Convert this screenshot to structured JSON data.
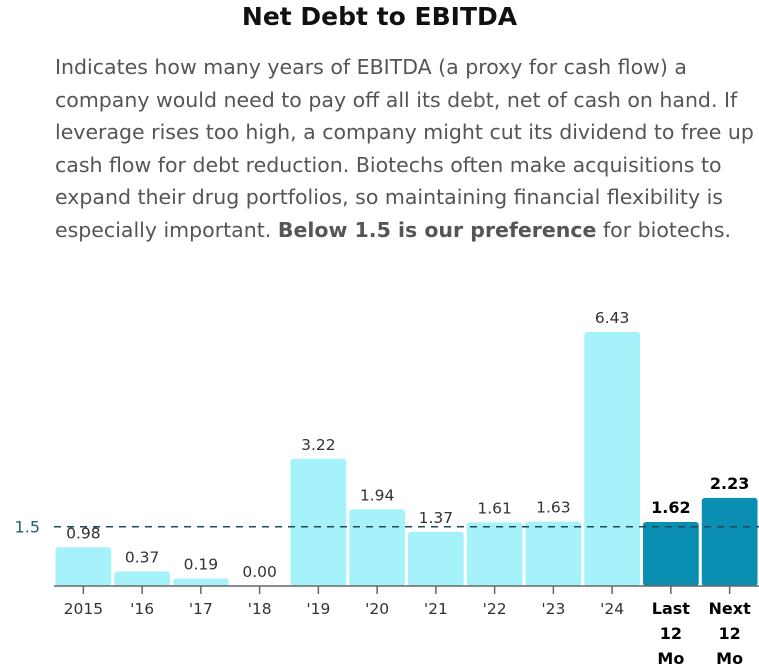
{
  "chart_data": {
    "type": "bar",
    "title": "Net Debt to EBITDA",
    "description": {
      "text": "Indicates how many years of EBITDA (a proxy for cash flow) a company would need to pay off all its debt, net of cash on hand. If leverage rises too high, a company might cut its dividend to free up cash flow for debt reduction. Biotechs often make acquisitions to expand their drug portfolios, so maintaining financial flexibility is especially important. ",
      "bold": "Below 1.5 is our preference",
      "tail": " for biotechs."
    },
    "categories": [
      "2015",
      "'16",
      "'17",
      "'18",
      "'19",
      "'20",
      "'21",
      "'22",
      "'23",
      "'24",
      "Last 12 Mo",
      "Next 12 Mo"
    ],
    "values": [
      0.98,
      0.37,
      0.19,
      0.0,
      3.22,
      1.94,
      1.37,
      1.61,
      1.63,
      6.43,
      1.62,
      2.23
    ],
    "value_labels": [
      "0.98",
      "0.37",
      "0.19",
      "0.00",
      "3.22",
      "1.94",
      "1.37",
      "1.61",
      "1.63",
      "6.43",
      "1.62",
      "2.23"
    ],
    "highlighted": [
      false,
      false,
      false,
      false,
      false,
      false,
      false,
      false,
      false,
      false,
      true,
      true
    ],
    "reference_line": {
      "value": 1.5,
      "label": "1.5"
    },
    "ylim": [
      0,
      6.43
    ],
    "xlabel": "",
    "ylabel": "",
    "grid": false,
    "colors": {
      "historical": "#a6f2fb",
      "projected": "#0a8fb2",
      "reference": "#1f4a5c",
      "reference_label": "#1f5f7a"
    }
  }
}
